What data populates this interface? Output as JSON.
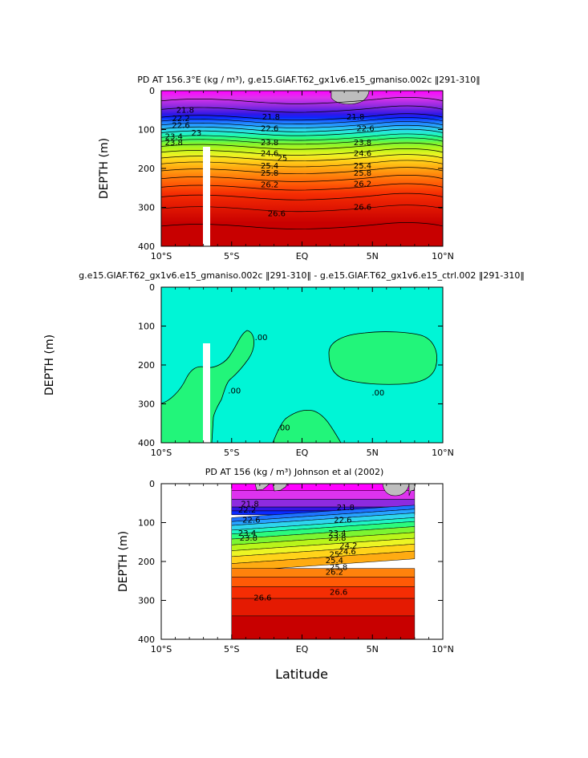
{
  "figure": {
    "xlabel": "Latitude"
  },
  "chart_data": [
    {
      "type": "heatmap",
      "title": "PD AT 156.3°E (kg / m³), g.e15.GIAF.T62_gx1v6.e15_gmaniso.002c ‖291-310‖",
      "ylabel": "DEPTH (m)",
      "xlabel": "",
      "xticks": [
        "10°S",
        "5°S",
        "EQ",
        "5N",
        "10°N"
      ],
      "xtick_values": [
        -10,
        -5,
        0,
        5,
        10
      ],
      "yticks": [
        "0",
        "100",
        "200",
        "300",
        "400"
      ],
      "ytick_values": [
        0,
        100,
        200,
        300,
        400
      ],
      "xlim": [
        -10,
        10
      ],
      "ylim": [
        0,
        400
      ],
      "y_inverted": true,
      "color_bands": [
        {
          "depth": 0,
          "color": "#ff00ff"
        },
        {
          "depth": 18,
          "color": "#dd33ee"
        },
        {
          "depth": 40,
          "color": "#8e2bdf"
        },
        {
          "depth": 60,
          "color": "#3316e6"
        },
        {
          "depth": 70,
          "color": "#0a28ff"
        },
        {
          "depth": 80,
          "color": "#1e73ff"
        },
        {
          "depth": 90,
          "color": "#27a2ff"
        },
        {
          "depth": 100,
          "color": "#2ed5ee"
        },
        {
          "depth": 112,
          "color": "#1ff5c4"
        },
        {
          "depth": 122,
          "color": "#2bfb7d"
        },
        {
          "depth": 135,
          "color": "#7cf531"
        },
        {
          "depth": 150,
          "color": "#b9f51a"
        },
        {
          "depth": 165,
          "color": "#ecf524"
        },
        {
          "depth": 180,
          "color": "#ffd31a"
        },
        {
          "depth": 198,
          "color": "#ffab12"
        },
        {
          "depth": 218,
          "color": "#ff820c"
        },
        {
          "depth": 240,
          "color": "#ff5a06"
        },
        {
          "depth": 265,
          "color": "#f52d03"
        },
        {
          "depth": 295,
          "color": "#e41a02"
        },
        {
          "depth": 340,
          "color": "#c80000"
        }
      ],
      "contour_labels": [
        {
          "label": "21.8",
          "x": -8.3,
          "y": 48
        },
        {
          "label": "21.8",
          "x": -2.2,
          "y": 66
        },
        {
          "label": "21.8",
          "x": 3.8,
          "y": 66
        },
        {
          "label": "22.2",
          "x": -8.6,
          "y": 70
        },
        {
          "label": "22.6",
          "x": -8.6,
          "y": 88
        },
        {
          "label": "22.6",
          "x": -2.3,
          "y": 96
        },
        {
          "label": "22.6",
          "x": 4.5,
          "y": 96
        },
        {
          "label": "23",
          "x": -7.5,
          "y": 107
        },
        {
          "label": "23.4",
          "x": -9.1,
          "y": 116
        },
        {
          "label": "23.8",
          "x": -9.1,
          "y": 132
        },
        {
          "label": "23.8",
          "x": -2.3,
          "y": 132
        },
        {
          "label": "23.8",
          "x": 4.3,
          "y": 132
        },
        {
          "label": "24.6",
          "x": -2.3,
          "y": 160
        },
        {
          "label": "24.6",
          "x": 4.3,
          "y": 160
        },
        {
          "label": "25",
          "x": -1.4,
          "y": 172
        },
        {
          "label": "25.4",
          "x": -2.3,
          "y": 192
        },
        {
          "label": "25.4",
          "x": 4.3,
          "y": 192
        },
        {
          "label": "25.8",
          "x": -2.3,
          "y": 210
        },
        {
          "label": "25.8",
          "x": 4.3,
          "y": 210
        },
        {
          "label": "26.2",
          "x": -2.3,
          "y": 240
        },
        {
          "label": "26.2",
          "x": 4.3,
          "y": 238
        },
        {
          "label": "26.6",
          "x": -1.8,
          "y": 314
        },
        {
          "label": "26.6",
          "x": 4.3,
          "y": 298
        }
      ]
    },
    {
      "type": "heatmap",
      "title": "g.e15.GIAF.T62_gx1v6.e15_gmaniso.002c ‖291-310‖ - g.e15.GIAF.T62_gx1v6.e15_ctrl.002 ‖291-310‖",
      "ylabel": "DEPTH (m)",
      "xlabel": "",
      "xticks": [
        "10°S",
        "5°S",
        "EQ",
        "5N",
        "10°N"
      ],
      "xtick_values": [
        -10,
        -5,
        0,
        5,
        10
      ],
      "yticks": [
        "0",
        "100",
        "200",
        "300",
        "400"
      ],
      "ytick_values": [
        0,
        100,
        200,
        300,
        400
      ],
      "xlim": [
        -10,
        10
      ],
      "ylim": [
        0,
        400
      ],
      "y_inverted": true,
      "colors": {
        "background": "#00f5d6",
        "positive": "#22f57a"
      },
      "contour_labels": [
        {
          "label": ".00",
          "x": -2.9,
          "y": 128
        },
        {
          "label": ".00",
          "x": -4.8,
          "y": 265
        },
        {
          "label": ".00",
          "x": -1.3,
          "y": 360
        },
        {
          "label": ".00",
          "x": 5.4,
          "y": 270
        }
      ]
    },
    {
      "type": "heatmap",
      "title": "PD AT 156 (kg / m³) Johnson et al (2002)",
      "ylabel": "DEPTH (m)",
      "xlabel": "Latitude",
      "xticks": [
        "10°S",
        "5°S",
        "EQ",
        "5N",
        "10°N"
      ],
      "xtick_values": [
        -10,
        -5,
        0,
        5,
        10
      ],
      "yticks": [
        "0",
        "100",
        "200",
        "300",
        "400"
      ],
      "ytick_values": [
        0,
        100,
        200,
        300,
        400
      ],
      "xlim": [
        -10,
        10
      ],
      "ylim": [
        0,
        400
      ],
      "data_xlim": [
        -5,
        8
      ],
      "y_inverted": true,
      "contour_labels": [
        {
          "label": "21.8",
          "x": -3.7,
          "y": 50
        },
        {
          "label": "21.8",
          "x": 3.1,
          "y": 60
        },
        {
          "label": "22.2",
          "x": -3.9,
          "y": 66
        },
        {
          "label": "22.6",
          "x": -3.6,
          "y": 92
        },
        {
          "label": "22.6",
          "x": 2.9,
          "y": 92
        },
        {
          "label": "23.4",
          "x": -3.9,
          "y": 126
        },
        {
          "label": "23.4",
          "x": 2.5,
          "y": 126
        },
        {
          "label": "23.8",
          "x": -3.8,
          "y": 138
        },
        {
          "label": "23.8",
          "x": 2.5,
          "y": 138
        },
        {
          "label": "24.2",
          "x": 3.3,
          "y": 158
        },
        {
          "label": "24.6",
          "x": 3.2,
          "y": 173
        },
        {
          "label": "25",
          "x": 2.3,
          "y": 180
        },
        {
          "label": "25.4",
          "x": 2.3,
          "y": 196
        },
        {
          "label": "25.8",
          "x": 2.6,
          "y": 213
        },
        {
          "label": "26.2",
          "x": 2.3,
          "y": 226
        },
        {
          "label": "26.6",
          "x": -2.8,
          "y": 292
        },
        {
          "label": "26.6",
          "x": 2.6,
          "y": 277
        }
      ]
    }
  ]
}
